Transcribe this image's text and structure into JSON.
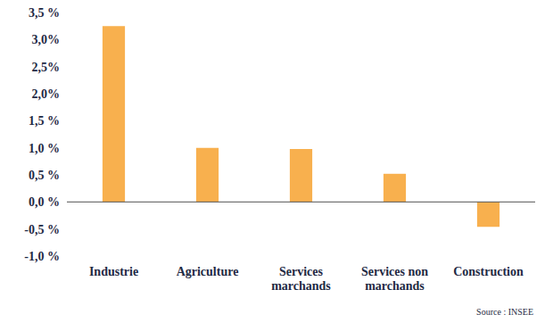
{
  "chart_data": {
    "type": "bar",
    "categories": [
      "Industrie",
      "Agriculture",
      "Services marchands",
      "Services non marchands",
      "Construction"
    ],
    "values": [
      3.25,
      1.0,
      0.98,
      0.52,
      -0.46
    ],
    "color": "#f8b04e",
    "ylim": [
      -1.0,
      3.5
    ],
    "yticks": [
      {
        "value": -1.0,
        "label": "-1,0 %"
      },
      {
        "value": -0.5,
        "label": "-0,5 %"
      },
      {
        "value": 0.0,
        "label": "0,0 %"
      },
      {
        "value": 0.5,
        "label": "0,5 %"
      },
      {
        "value": 1.0,
        "label": "1,0 %"
      },
      {
        "value": 1.5,
        "label": "1,5 %"
      },
      {
        "value": 2.0,
        "label": "2,0%"
      },
      {
        "value": 2.5,
        "label": "2,5%"
      },
      {
        "value": 3.0,
        "label": "3,0%"
      },
      {
        "value": 3.5,
        "label": "3,5 %"
      }
    ],
    "grid": false,
    "source": "Source : INSEE"
  }
}
